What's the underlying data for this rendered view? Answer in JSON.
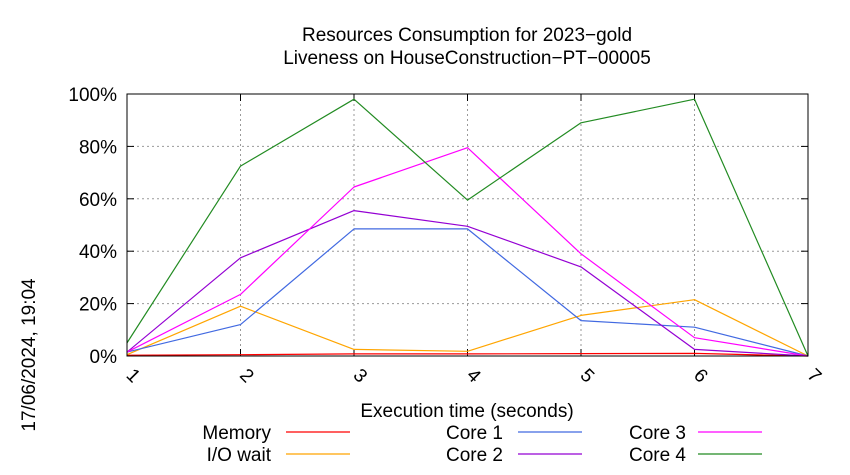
{
  "chart_data": {
    "type": "line",
    "title_line1": "Resources Consumption for 2023−gold",
    "title_line2": "Liveness on HouseConstruction−PT−00005",
    "xlabel": "Execution time (seconds)",
    "ylabel": "",
    "side_label": "17/06/2024, 19:04",
    "x": [
      1,
      2,
      3,
      4,
      5,
      6,
      7
    ],
    "xlim": [
      1,
      7
    ],
    "ylim": [
      0,
      100
    ],
    "x_ticks": [
      "1",
      "2",
      "3",
      "4",
      "5",
      "6",
      "7"
    ],
    "y_ticks": [
      {
        "value": 0,
        "label": "0%"
      },
      {
        "value": 20,
        "label": "20%"
      },
      {
        "value": 40,
        "label": "40%"
      },
      {
        "value": 60,
        "label": "60%"
      },
      {
        "value": 80,
        "label": "80%"
      },
      {
        "value": 100,
        "label": "100%"
      }
    ],
    "grid": true,
    "legend_position": "bottom",
    "series": [
      {
        "name": "Memory",
        "color": "#ff0000",
        "values": [
          0.3,
          0.5,
          0.8,
          0.8,
          0.9,
          1.0,
          0.0
        ]
      },
      {
        "name": "I/O wait",
        "color": "#ffa500",
        "values": [
          0.5,
          19,
          2.5,
          1.8,
          15.5,
          21.5,
          0
        ]
      },
      {
        "name": "Core 1",
        "color": "#4169e1",
        "values": [
          1.5,
          12,
          48.5,
          48.5,
          13.5,
          11,
          0
        ]
      },
      {
        "name": "Core 2",
        "color": "#9400d3",
        "values": [
          1.5,
          37.5,
          55.5,
          49.5,
          34,
          2.5,
          0
        ]
      },
      {
        "name": "Core 3",
        "color": "#ff00ff",
        "values": [
          1.5,
          23.5,
          64.5,
          79.5,
          39,
          7,
          0
        ]
      },
      {
        "name": "Core 4",
        "color": "#228b22",
        "values": [
          5,
          72.5,
          98,
          59.5,
          89,
          98,
          0
        ]
      }
    ]
  }
}
